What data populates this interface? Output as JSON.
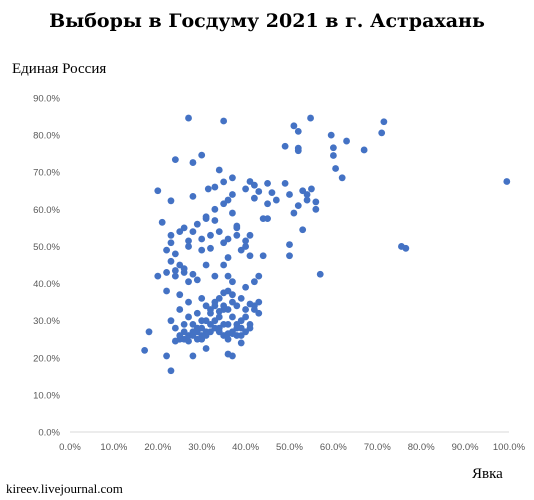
{
  "chart_data": {
    "type": "scatter",
    "title": "Выборы в Госдуму 2021 в г. Астрахань",
    "ylabel": "Единая Россия",
    "xlabel": "Явка",
    "watermark": "kireev.livejournal.com",
    "xlim": [
      0,
      100
    ],
    "ylim": [
      0,
      90
    ],
    "xticks": [
      0,
      10,
      20,
      30,
      40,
      50,
      60,
      70,
      80,
      90,
      100
    ],
    "yticks": [
      0,
      10,
      20,
      30,
      40,
      50,
      60,
      70,
      80,
      90
    ],
    "tick_format": "0.0%",
    "grid": false,
    "marker_color": "#4472c4",
    "points": [
      [
        27,
        84.6
      ],
      [
        35,
        83.8
      ],
      [
        54.8,
        84.6
      ],
      [
        51,
        82.5
      ],
      [
        52,
        81
      ],
      [
        59.5,
        80
      ],
      [
        71.5,
        83.6
      ],
      [
        71,
        80.6
      ],
      [
        63,
        78.4
      ],
      [
        49,
        77
      ],
      [
        52,
        76.5
      ],
      [
        52,
        75.8
      ],
      [
        60,
        76.6
      ],
      [
        67,
        76
      ],
      [
        60,
        74.5
      ],
      [
        60.5,
        71
      ],
      [
        62,
        68.5
      ],
      [
        99.5,
        67.5
      ],
      [
        30,
        74.6
      ],
      [
        24,
        73.4
      ],
      [
        28,
        72.6
      ],
      [
        34,
        70.6
      ],
      [
        37,
        68.5
      ],
      [
        35,
        67.4
      ],
      [
        31.5,
        65.5
      ],
      [
        33,
        66
      ],
      [
        37,
        64
      ],
      [
        40,
        65.5
      ],
      [
        42,
        66.5
      ],
      [
        45,
        67
      ],
      [
        46,
        64.5
      ],
      [
        42,
        63
      ],
      [
        36,
        62.5
      ],
      [
        28,
        63.5
      ],
      [
        23,
        62.3
      ],
      [
        20,
        65
      ],
      [
        41,
        67.5
      ],
      [
        43,
        64.8
      ],
      [
        45,
        61.5
      ],
      [
        47,
        62.5
      ],
      [
        44,
        57.5
      ],
      [
        45,
        57.5
      ],
      [
        50,
        64
      ],
      [
        51,
        59
      ],
      [
        53,
        65
      ],
      [
        54,
        64
      ],
      [
        55,
        65.5
      ],
      [
        54,
        62.5
      ],
      [
        56,
        62
      ],
      [
        56,
        60
      ],
      [
        52,
        61
      ],
      [
        49,
        67
      ],
      [
        35,
        61.5
      ],
      [
        33,
        60
      ],
      [
        31,
        58
      ],
      [
        29,
        56
      ],
      [
        28,
        54
      ],
      [
        26,
        55
      ],
      [
        25,
        54
      ],
      [
        23,
        53
      ],
      [
        21,
        56.5
      ],
      [
        23,
        51
      ],
      [
        22,
        49
      ],
      [
        24,
        48
      ],
      [
        23,
        46
      ],
      [
        25,
        45
      ],
      [
        26,
        44
      ],
      [
        27,
        50
      ],
      [
        30,
        52
      ],
      [
        31,
        57.5
      ],
      [
        32,
        53
      ],
      [
        34,
        54
      ],
      [
        36,
        52
      ],
      [
        38,
        53
      ],
      [
        40,
        50
      ],
      [
        38,
        55
      ],
      [
        39,
        49
      ],
      [
        36,
        47
      ],
      [
        35,
        45
      ],
      [
        33,
        42
      ],
      [
        29,
        41
      ],
      [
        24,
        42
      ],
      [
        24,
        43.5
      ],
      [
        22,
        43
      ],
      [
        20,
        42
      ],
      [
        26,
        43
      ],
      [
        28,
        42.5
      ],
      [
        27,
        40.5
      ],
      [
        31,
        45
      ],
      [
        36,
        42
      ],
      [
        37,
        40.5
      ],
      [
        40,
        39
      ],
      [
        42,
        40.5
      ],
      [
        43,
        42
      ],
      [
        44,
        47.5
      ],
      [
        41,
        47.5
      ],
      [
        41,
        53
      ],
      [
        40,
        51.5
      ],
      [
        38,
        55.5
      ],
      [
        37,
        59
      ],
      [
        33,
        57
      ],
      [
        35,
        51
      ],
      [
        32,
        49.5
      ],
      [
        30,
        49
      ],
      [
        27,
        51.5
      ],
      [
        50,
        50.5
      ],
      [
        50,
        47.5
      ],
      [
        53,
        54.5
      ],
      [
        57,
        42.5
      ],
      [
        75.5,
        50
      ],
      [
        76.5,
        49.5
      ],
      [
        22,
        38
      ],
      [
        25,
        37
      ],
      [
        27,
        35
      ],
      [
        30,
        36
      ],
      [
        31,
        34
      ],
      [
        33,
        35
      ],
      [
        34,
        36
      ],
      [
        35,
        37.5
      ],
      [
        36,
        38
      ],
      [
        37,
        37
      ],
      [
        35,
        33
      ],
      [
        34,
        31
      ],
      [
        32,
        32
      ],
      [
        30,
        30
      ],
      [
        29,
        28
      ],
      [
        28,
        29
      ],
      [
        27,
        31
      ],
      [
        26,
        29
      ],
      [
        25,
        33
      ],
      [
        23,
        30
      ],
      [
        24,
        28
      ],
      [
        25,
        26
      ],
      [
        26,
        27
      ],
      [
        27,
        26
      ],
      [
        28,
        27
      ],
      [
        29,
        25
      ],
      [
        30,
        26
      ],
      [
        31,
        27
      ],
      [
        32,
        29
      ],
      [
        33,
        28
      ],
      [
        34,
        27
      ],
      [
        35,
        26
      ],
      [
        36,
        25
      ],
      [
        37,
        27
      ],
      [
        38,
        28
      ],
      [
        39,
        30
      ],
      [
        40,
        31
      ],
      [
        41,
        29
      ],
      [
        42,
        33
      ],
      [
        43,
        35
      ],
      [
        43,
        32
      ],
      [
        42,
        34
      ],
      [
        41,
        34.5
      ],
      [
        40,
        33
      ],
      [
        38,
        29
      ],
      [
        37,
        31
      ],
      [
        36,
        29
      ],
      [
        35,
        29
      ],
      [
        34,
        28
      ],
      [
        33,
        30
      ],
      [
        32,
        27
      ],
      [
        31,
        26
      ],
      [
        30,
        25
      ],
      [
        29,
        27
      ],
      [
        28,
        26
      ],
      [
        27,
        24.5
      ],
      [
        26,
        25
      ],
      [
        25,
        25
      ],
      [
        24,
        24.5
      ],
      [
        22,
        20.5
      ],
      [
        18,
        27
      ],
      [
        17,
        22
      ],
      [
        23,
        16.5
      ],
      [
        28,
        20.5
      ],
      [
        31,
        22.5
      ],
      [
        36,
        21
      ],
      [
        37,
        20.5
      ],
      [
        39,
        24
      ],
      [
        39,
        26
      ],
      [
        40,
        27
      ],
      [
        39,
        28
      ],
      [
        41,
        28
      ],
      [
        38,
        26
      ],
      [
        37,
        26.5
      ],
      [
        36,
        26.5
      ],
      [
        30,
        28
      ],
      [
        31,
        30
      ],
      [
        29,
        32
      ],
      [
        32,
        33
      ],
      [
        33,
        34
      ],
      [
        34,
        32.5
      ],
      [
        35,
        34
      ],
      [
        36,
        33
      ],
      [
        38,
        34
      ],
      [
        39,
        36
      ],
      [
        37,
        35
      ]
    ]
  }
}
